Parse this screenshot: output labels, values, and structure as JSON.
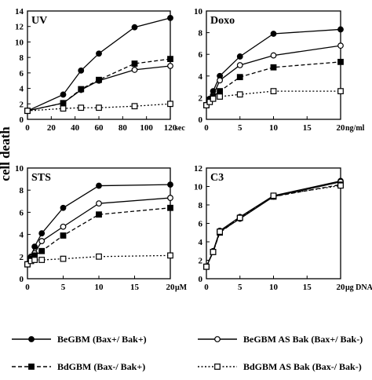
{
  "figure": {
    "ylabel": "cell death"
  },
  "legend": [
    {
      "label": "BeGBM (Bax+/ Bak+)",
      "marker": "filled-circle",
      "line": "solid"
    },
    {
      "label": "BeGBM AS Bak (Bax+/ Bak-)",
      "marker": "open-circle",
      "line": "solid"
    },
    {
      "label": "BdGBM (Bax-/ Bak+)",
      "marker": "filled-square",
      "line": "dashed"
    },
    {
      "label": "BdGBM AS Bak (Bax-/ Bak-)",
      "marker": "open-square",
      "line": "dotted"
    }
  ],
  "chart_data": [
    {
      "type": "line",
      "title": "UV",
      "unit": "sec",
      "xlim": [
        0,
        120
      ],
      "ylim": [
        0,
        14
      ],
      "xticks": [
        0,
        20,
        40,
        60,
        80,
        100,
        120
      ],
      "yticks": [
        0,
        2,
        4,
        6,
        8,
        10,
        12,
        14
      ],
      "series": [
        {
          "name": "BeGBM (Bax+/ Bak+)",
          "x": [
            0,
            30,
            45,
            60,
            90,
            120
          ],
          "y": [
            1.1,
            3.2,
            6.3,
            8.5,
            11.9,
            13.1
          ]
        },
        {
          "name": "BeGBM AS Bak (Bax+/ Bak-)",
          "x": [
            0,
            30,
            45,
            60,
            90,
            120
          ],
          "y": [
            1.1,
            2.1,
            3.8,
            5.0,
            6.4,
            6.9
          ]
        },
        {
          "name": "BdGBM (Bax-/ Bak+)",
          "x": [
            0,
            30,
            45,
            60,
            90,
            120
          ],
          "y": [
            1.1,
            2.1,
            3.9,
            5.1,
            7.2,
            7.8
          ]
        },
        {
          "name": "BdGBM AS Bak (Bax-/ Bak-)",
          "x": [
            0,
            30,
            45,
            60,
            90,
            120
          ],
          "y": [
            1.1,
            1.4,
            1.5,
            1.5,
            1.7,
            2.0
          ]
        }
      ]
    },
    {
      "type": "line",
      "title": "Doxo",
      "unit": "ng/ml",
      "xlim": [
        0,
        20
      ],
      "ylim": [
        0,
        10
      ],
      "xticks": [
        0,
        5,
        10,
        15,
        20
      ],
      "yticks": [
        0,
        2,
        4,
        6,
        8,
        10
      ],
      "series": [
        {
          "name": "BeGBM (Bax+/ Bak+)",
          "x": [
            0,
            0.5,
            1,
            2,
            5,
            10,
            20
          ],
          "y": [
            1.3,
            1.9,
            2.6,
            4.0,
            5.8,
            7.9,
            8.3
          ]
        },
        {
          "name": "BeGBM AS Bak (Bax+/ Bak-)",
          "x": [
            0,
            0.5,
            1,
            2,
            5,
            10,
            20
          ],
          "y": [
            1.3,
            1.8,
            2.2,
            3.6,
            5.0,
            5.9,
            6.8
          ]
        },
        {
          "name": "BdGBM (Bax-/ Bak+)",
          "x": [
            0,
            0.5,
            1,
            2,
            5,
            10,
            20
          ],
          "y": [
            1.3,
            1.8,
            2.1,
            2.6,
            3.9,
            4.8,
            5.3
          ]
        },
        {
          "name": "BdGBM AS Bak (Bax-/ Bak-)",
          "x": [
            0,
            0.5,
            1,
            2,
            5,
            10,
            20
          ],
          "y": [
            1.3,
            1.6,
            1.9,
            2.1,
            2.3,
            2.6,
            2.6
          ]
        }
      ]
    },
    {
      "type": "line",
      "title": "STS",
      "unit": "μM",
      "xlim": [
        0,
        20
      ],
      "ylim": [
        0,
        10
      ],
      "xticks": [
        0,
        5,
        10,
        15,
        20
      ],
      "yticks": [
        0,
        2,
        4,
        6,
        8,
        10
      ],
      "series": [
        {
          "name": "BeGBM (Bax+/ Bak+)",
          "x": [
            0,
            0.5,
            1,
            2,
            5,
            10,
            20
          ],
          "y": [
            1.3,
            2.0,
            2.9,
            4.1,
            6.4,
            8.4,
            8.5
          ]
        },
        {
          "name": "BeGBM AS Bak (Bax+/ Bak-)",
          "x": [
            0,
            0.5,
            1,
            2,
            5,
            10,
            20
          ],
          "y": [
            1.3,
            1.9,
            2.3,
            3.4,
            4.7,
            6.8,
            7.3
          ]
        },
        {
          "name": "BdGBM (Bax-/ Bak+)",
          "x": [
            0,
            0.5,
            1,
            2,
            5,
            10,
            20
          ],
          "y": [
            1.3,
            1.8,
            2.1,
            2.5,
            3.9,
            5.8,
            6.4
          ]
        },
        {
          "name": "BdGBM AS Bak (Bax-/ Bak-)",
          "x": [
            0,
            0.5,
            1,
            2,
            5,
            10,
            20
          ],
          "y": [
            1.3,
            1.6,
            1.7,
            1.7,
            1.8,
            2.0,
            2.1
          ]
        }
      ]
    },
    {
      "type": "line",
      "title": "C3",
      "unit": "μg DNA",
      "xlim": [
        0,
        20
      ],
      "ylim": [
        0,
        12
      ],
      "xticks": [
        0,
        5,
        10,
        15,
        20
      ],
      "yticks": [
        0,
        2,
        4,
        6,
        8,
        10,
        12
      ],
      "series": [
        {
          "name": "BeGBM (Bax+/ Bak+)",
          "x": [
            0,
            1,
            2,
            5,
            10,
            20
          ],
          "y": [
            1.3,
            3.0,
            5.2,
            6.7,
            9.0,
            10.6
          ]
        },
        {
          "name": "BeGBM AS Bak (Bax+/ Bak-)",
          "x": [
            0,
            1,
            2,
            5,
            10,
            20
          ],
          "y": [
            1.3,
            2.9,
            5.1,
            6.5,
            8.9,
            10.5
          ]
        },
        {
          "name": "BdGBM (Bax-/ Bak+)",
          "x": [
            0,
            1,
            2,
            5,
            10,
            20
          ],
          "y": [
            1.3,
            2.9,
            5.0,
            6.6,
            8.9,
            10.2
          ]
        },
        {
          "name": "BdGBM AS Bak (Bax-/ Bak-)",
          "x": [
            0,
            1,
            2,
            5,
            10,
            20
          ],
          "y": [
            1.3,
            2.9,
            5.1,
            6.6,
            9.0,
            10.1
          ]
        }
      ]
    }
  ]
}
